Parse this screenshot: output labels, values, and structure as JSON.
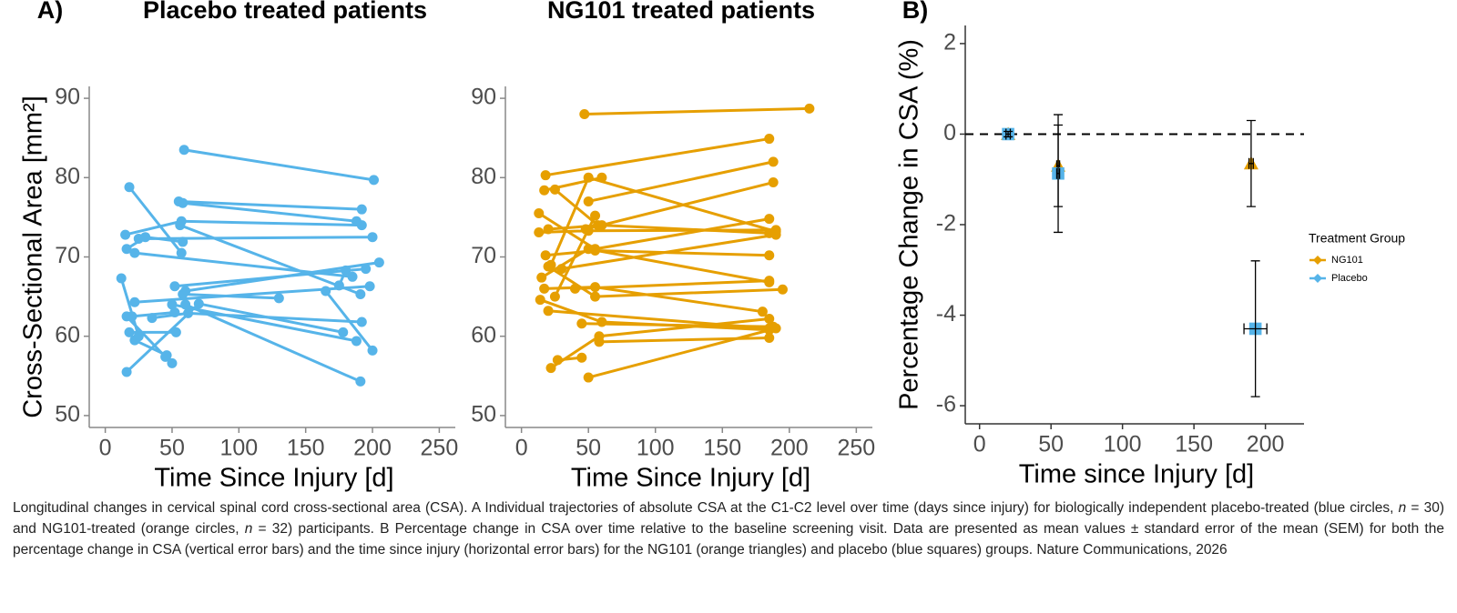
{
  "chart_data": [
    {
      "type": "line",
      "panel_label": "A)",
      "title": "Placebo treated patients",
      "xlabel": "Time Since Injury [d]",
      "ylabel": "Cross-Sectional Area [mm²]",
      "color": "#56b4e9",
      "xlim": [
        -12,
        262
      ],
      "xticks": [
        0,
        50,
        100,
        150,
        200,
        250
      ],
      "ylim": [
        48.5,
        91.5
      ],
      "yticks": [
        50,
        60,
        70,
        80,
        90
      ],
      "series": [
        {
          "x": [
            59,
            201
          ],
          "values": [
            83.5,
            79.7
          ]
        },
        {
          "x": [
            18,
            57
          ],
          "values": [
            78.8,
            70.5
          ]
        },
        {
          "x": [
            55,
            192
          ],
          "values": [
            77,
            76
          ]
        },
        {
          "x": [
            58,
            188
          ],
          "values": [
            76.8,
            74.5
          ]
        },
        {
          "x": [
            15,
            57,
            192
          ],
          "values": [
            72.8,
            74.5,
            74
          ]
        },
        {
          "x": [
            25,
            200
          ],
          "values": [
            72.3,
            72.5
          ]
        },
        {
          "x": [
            16,
            30,
            58
          ],
          "values": [
            71,
            72.5,
            71.9
          ]
        },
        {
          "x": [
            22,
            185
          ],
          "values": [
            70.5,
            67.5
          ]
        },
        {
          "x": [
            56,
            191
          ],
          "values": [
            74,
            65.3
          ]
        },
        {
          "x": [
            60,
            205
          ],
          "values": [
            65.7,
            69.3
          ]
        },
        {
          "x": [
            58,
            130
          ],
          "values": [
            65.3,
            64.8
          ]
        },
        {
          "x": [
            22,
            198
          ],
          "values": [
            64.3,
            66.3
          ]
        },
        {
          "x": [
            52,
            195
          ],
          "values": [
            66.3,
            68.5
          ]
        },
        {
          "x": [
            12,
            25
          ],
          "values": [
            67.3,
            60
          ]
        },
        {
          "x": [
            35,
            62,
            192
          ],
          "values": [
            62.3,
            62.9,
            61.8
          ]
        },
        {
          "x": [
            16,
            45
          ],
          "values": [
            62.5,
            57.4
          ]
        },
        {
          "x": [
            20,
            52
          ],
          "values": [
            62.5,
            63
          ]
        },
        {
          "x": [
            18,
            53
          ],
          "values": [
            60.5,
            60.5
          ]
        },
        {
          "x": [
            22,
            46,
            50
          ],
          "values": [
            59.5,
            57.6,
            56.6
          ]
        },
        {
          "x": [
            16,
            70,
            178
          ],
          "values": [
            55.5,
            64.1,
            60.5
          ]
        },
        {
          "x": [
            50,
            188
          ],
          "values": [
            64,
            59.4
          ]
        },
        {
          "x": [
            60,
            191
          ],
          "values": [
            64,
            54.3
          ]
        },
        {
          "x": [
            165,
            200
          ],
          "values": [
            65.7,
            58.2
          ]
        },
        {
          "x": [
            175,
            180
          ],
          "values": [
            66.4,
            68.3
          ]
        }
      ]
    },
    {
      "type": "line",
      "title": "NG101 treated patients",
      "xlabel": "Time Since Injury [d]",
      "color": "#e69f00",
      "xlim": [
        -12,
        262
      ],
      "xticks": [
        0,
        50,
        100,
        150,
        200,
        250
      ],
      "ylim": [
        48.5,
        91.5
      ],
      "yticks": [
        50,
        60,
        70,
        80,
        90
      ],
      "series": [
        {
          "x": [
            47,
            215
          ],
          "values": [
            88,
            88.7
          ]
        },
        {
          "x": [
            18,
            185
          ],
          "values": [
            80.3,
            84.9
          ]
        },
        {
          "x": [
            50,
            188
          ],
          "values": [
            77,
            82
          ]
        },
        {
          "x": [
            17,
            60
          ],
          "values": [
            78.4,
            80
          ]
        },
        {
          "x": [
            48,
            188
          ],
          "values": [
            73.5,
            79.4
          ]
        },
        {
          "x": [
            25,
            57
          ],
          "values": [
            78.5,
            74
          ]
        },
        {
          "x": [
            13,
            55,
            185
          ],
          "values": [
            75.5,
            71,
            74.8
          ]
        },
        {
          "x": [
            13,
            50,
            190
          ],
          "values": [
            73.1,
            73.3,
            73.4
          ]
        },
        {
          "x": [
            20,
            60,
            185
          ],
          "values": [
            73.5,
            74,
            73
          ]
        },
        {
          "x": [
            22,
            50,
            190
          ],
          "values": [
            69,
            80,
            73.2
          ]
        },
        {
          "x": [
            18,
            55,
            185
          ],
          "values": [
            70.2,
            70.8,
            70.2
          ]
        },
        {
          "x": [
            15,
            50,
            185
          ],
          "values": [
            67.4,
            71,
            66.8
          ]
        },
        {
          "x": [
            20,
            55,
            195
          ],
          "values": [
            68.8,
            65,
            65.9
          ]
        },
        {
          "x": [
            17,
            55,
            180
          ],
          "values": [
            66,
            66.2,
            63.1
          ]
        },
        {
          "x": [
            14,
            60,
            185
          ],
          "values": [
            64.6,
            61.8,
            60.8
          ]
        },
        {
          "x": [
            25,
            55
          ],
          "values": [
            65,
            75.2
          ]
        },
        {
          "x": [
            45,
            188
          ],
          "values": [
            61.6,
            61.2
          ]
        },
        {
          "x": [
            20,
            185
          ],
          "values": [
            63.2,
            61
          ]
        },
        {
          "x": [
            27,
            45
          ],
          "values": [
            57,
            57.3
          ]
        },
        {
          "x": [
            22,
            58,
            185
          ],
          "values": [
            56,
            60,
            62.2
          ]
        },
        {
          "x": [
            50,
            190
          ],
          "values": [
            54.8,
            61
          ]
        },
        {
          "x": [
            58,
            185
          ],
          "values": [
            59.3,
            59.8
          ]
        },
        {
          "x": [
            30,
            190
          ],
          "values": [
            68.5,
            72.8
          ]
        },
        {
          "x": [
            40,
            185
          ],
          "values": [
            66,
            67
          ]
        }
      ]
    },
    {
      "type": "scatter",
      "panel_label": "B)",
      "xlabel": "Time since Injury [d]",
      "ylabel": "Percentage Change in CSA (%)",
      "xlim": [
        -10,
        227
      ],
      "xticks": [
        0,
        50,
        100,
        150,
        200
      ],
      "ylim": [
        -6.4,
        2.4
      ],
      "yticks": [
        -6,
        -4,
        -2,
        0,
        2
      ],
      "hline": 0,
      "legend_title": "Treatment Group",
      "series": [
        {
          "name": "NG101",
          "color": "#e69f00",
          "marker": "triangle",
          "x": [
            20,
            55,
            190
          ],
          "values": [
            0,
            -0.7,
            -0.65
          ],
          "yerr": [
            0.06,
            0.9,
            0.95
          ],
          "xerr": [
            1.5,
            1,
            1.5
          ]
        },
        {
          "name": "Placebo",
          "color": "#56b4e9",
          "marker": "square",
          "x": [
            20,
            55,
            193
          ],
          "values": [
            0,
            -0.87,
            -4.3
          ],
          "yerr": [
            0.06,
            1.3,
            1.5
          ],
          "xerr": [
            1.5,
            1,
            8
          ]
        }
      ]
    }
  ],
  "caption": [
    "Longitudinal changes in cervical spinal cord cross-sectional area (CSA). A Individual trajectories of absolute CSA at the C1-C2 level over time (days since injury) for biologically independent placebo-treated (blue circles, ",
    "n",
    " = 30) and NG101-treated (orange circles, ",
    "n",
    " = 32) participants. B Percentage change in CSA over time relative to the baseline screening visit. Data are presented as mean values ± standard error of the mean (SEM) for both the percentage change in CSA (vertical error bars) and the time since injury (horizontal error bars) for the NG101 (orange triangles) and placebo (blue squares) groups. Nature Communications, 2026"
  ]
}
